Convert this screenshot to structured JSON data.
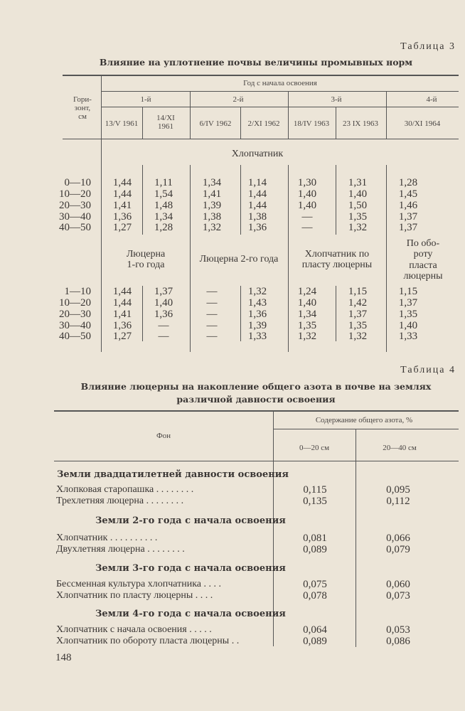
{
  "table3": {
    "caption": "Таблица 3",
    "title": "Влияние на уплотнение почвы величины промывных норм",
    "horizon_header": "Гори-\nзонт,\nсм",
    "year_header": "Год с начала освоения",
    "years": [
      "1-й",
      "2-й",
      "3-й",
      "4-й"
    ],
    "dates": [
      "13/V 1961",
      "14/XI\n1961",
      "6/IV 1962",
      "2/XI 1962",
      "18/IV 1963",
      "23 IX 1963",
      "30/XI 1964"
    ],
    "section1": {
      "label": "Хлопчатник",
      "rows": [
        {
          "horizon": "0—10",
          "values": [
            "1,44",
            "1,11",
            "1,34",
            "1,14",
            "1,30",
            "1,31",
            "1,28"
          ]
        },
        {
          "horizon": "10—20",
          "values": [
            "1,44",
            "1,54",
            "1,41",
            "1,44",
            "1,40",
            "1,40",
            "1,45"
          ]
        },
        {
          "horizon": "20—30",
          "values": [
            "1,41",
            "1,48",
            "1,39",
            "1,44",
            "1,40",
            "1,50",
            "1,46"
          ]
        },
        {
          "horizon": "30—40",
          "values": [
            "1,36",
            "1,34",
            "1,38",
            "1,38",
            "—",
            "1,35",
            "1,37"
          ]
        },
        {
          "horizon": "40—50",
          "values": [
            "1,27",
            "1,28",
            "1,32",
            "1,36",
            "—",
            "1,32",
            "1,37"
          ]
        }
      ]
    },
    "section2": {
      "labels": [
        "Люцерна\n1-го года",
        "Люцерна 2-го года",
        "Хлопчатник по\nпласту люцерны",
        "По обо-\nроту\nпласта\nлюцерны"
      ],
      "rows": [
        {
          "horizon": "1—10",
          "values": [
            "1,44",
            "1,37",
            "—",
            "1,32",
            "1,24",
            "1,15",
            "1,15"
          ]
        },
        {
          "horizon": "10—20",
          "values": [
            "1,44",
            "1,40",
            "—",
            "1,43",
            "1,40",
            "1,42",
            "1,37"
          ]
        },
        {
          "horizon": "20—30",
          "values": [
            "1,41",
            "1,36",
            "—",
            "1,36",
            "1,34",
            "1,37",
            "1,35"
          ]
        },
        {
          "horizon": "30—40",
          "values": [
            "1,36",
            "—",
            "—",
            "1,39",
            "1,35",
            "1,35",
            "1,40"
          ]
        },
        {
          "horizon": "40—50",
          "values": [
            "1,27",
            "—",
            "—",
            "1,33",
            "1,32",
            "1,32",
            "1,33"
          ]
        }
      ]
    }
  },
  "table4": {
    "caption": "Таблица 4",
    "title_line1": "Влияние люцерны на накопление общего азота в почве на землях",
    "title_line2": "различной давности освоения",
    "col_fon": "Фон",
    "col_group": "Содержание общего азота, %",
    "col_0_20": "0—20 см",
    "col_20_40": "20—40 см",
    "groups": [
      {
        "title": "Земли двадцатилетней давности освоения",
        "rows": [
          {
            "label": "Хлопковая старопашка . . . . . . . .",
            "v1": "0,115",
            "v2": "0,095"
          },
          {
            "label": "Трехлетняя люцерна . . . . . . . .",
            "v1": "0,135",
            "v2": "0,112"
          }
        ]
      },
      {
        "title": "Земли 2-го года с начала освоения",
        "rows": [
          {
            "label": "Хлопчатник . . . . . . . . . .",
            "v1": "0,081",
            "v2": "0,066"
          },
          {
            "label": "Двухлетняя люцерна . . . . . . . .",
            "v1": "0,089",
            "v2": "0,079"
          }
        ]
      },
      {
        "title": "Земли 3-го года с начала освоения",
        "rows": [
          {
            "label": "Бессменная культура хлопчатника . . . .",
            "v1": "0,075",
            "v2": "0,060"
          },
          {
            "label": "Хлопчатник по пласту люцерны . . . .",
            "v1": "0,078",
            "v2": "0,073"
          }
        ]
      },
      {
        "title": "Земли 4-го года с начала освоения",
        "rows": [
          {
            "label": "Хлопчатник с начала освоения . . . . .",
            "v1": "0,064",
            "v2": "0,053"
          },
          {
            "label": "Хлопчатник по обороту пласта люцерны . .",
            "v1": "0,089",
            "v2": "0,086"
          }
        ]
      }
    ]
  },
  "page_number": "148"
}
